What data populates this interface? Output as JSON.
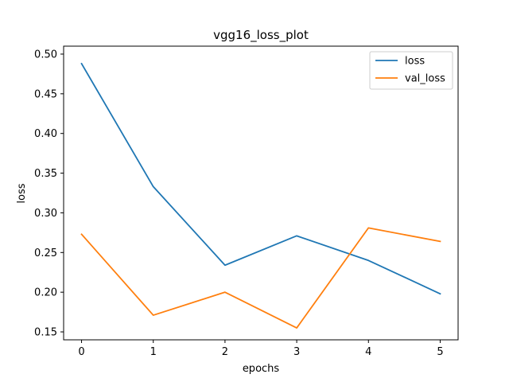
{
  "chart_data": {
    "type": "line",
    "title": "vgg16_loss_plot",
    "xlabel": "epochs",
    "ylabel": "loss",
    "x": [
      0,
      1,
      2,
      3,
      4,
      5
    ],
    "xlim": [
      -0.25,
      5.25
    ],
    "ylim": [
      0.14,
      0.51
    ],
    "xticks": [
      0,
      1,
      2,
      3,
      4,
      5
    ],
    "yticks": [
      0.15,
      0.2,
      0.25,
      0.3,
      0.35,
      0.4,
      0.45,
      0.5
    ],
    "grid": false,
    "legend_position": "top-right",
    "series": [
      {
        "name": "loss",
        "color": "#1f77b4",
        "values": [
          0.488,
          0.333,
          0.234,
          0.271,
          0.24,
          0.198
        ]
      },
      {
        "name": "val_loss",
        "color": "#ff7f0e",
        "values": [
          0.273,
          0.171,
          0.2,
          0.155,
          0.281,
          0.264
        ]
      }
    ]
  }
}
